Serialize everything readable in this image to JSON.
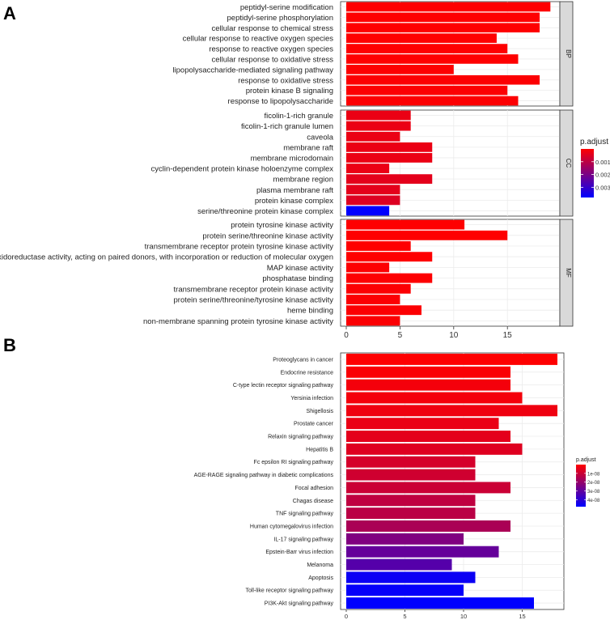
{
  "chart_data": [
    {
      "panel_label": "A",
      "type": "bar",
      "orientation": "horizontal",
      "facets": [
        {
          "name": "BP",
          "categories": [
            "peptidyl-serine modification",
            "peptidyl-serine phosphorylation",
            "cellular response to chemical stress",
            "cellular response to reactive oxygen species",
            "response to reactive oxygen species",
            "cellular response to oxidative stress",
            "lipopolysaccharide-mediated signaling pathway",
            "response to oxidative stress",
            "protein kinase B signaling",
            "response to lipopolysaccharide"
          ],
          "values": [
            19,
            18,
            18,
            14,
            15,
            16,
            10,
            18,
            15,
            16
          ],
          "p_adjust": [
            1e-05,
            1e-05,
            2e-05,
            2e-05,
            2e-05,
            2e-05,
            3e-05,
            4e-05,
            4e-05,
            5e-05
          ]
        },
        {
          "name": "CC",
          "categories": [
            "ficolin-1-rich granule",
            "ficolin-1-rich granule lumen",
            "caveola",
            "membrane raft",
            "membrane microdomain",
            "cyclin-dependent protein kinase holoenzyme complex",
            "membrane region",
            "plasma membrane raft",
            "protein kinase complex",
            "serine/threonine protein kinase complex"
          ],
          "values": [
            6,
            6,
            5,
            8,
            8,
            4,
            8,
            5,
            5,
            4
          ],
          "p_adjust": [
            0.0003,
            0.0003,
            0.0003,
            0.0003,
            0.0003,
            0.0003,
            0.0004,
            0.0004,
            0.0005,
            0.0038
          ]
        },
        {
          "name": "MF",
          "categories": [
            "protein tyrosine kinase activity",
            "protein serine/threonine kinase activity",
            "transmembrane receptor protein tyrosine kinase activity",
            "oxidoreductase activity, acting on paired donors, with incorporation or reduction of molecular oxygen",
            "MAP kinase activity",
            "phosphatase binding",
            "transmembrane receptor protein kinase activity",
            "protein serine/threonine/tyrosine kinase activity",
            "heme binding",
            "non-membrane spanning protein tyrosine kinase activity"
          ],
          "values": [
            11,
            15,
            6,
            8,
            4,
            8,
            6,
            5,
            7,
            5
          ],
          "p_adjust": [
            1e-05,
            1e-05,
            2e-05,
            2e-05,
            3e-05,
            3e-05,
            4e-05,
            5e-05,
            5e-05,
            6e-05
          ]
        }
      ],
      "x_ticks": [
        0,
        5,
        10,
        15
      ],
      "xlim": [
        0,
        20
      ],
      "grid": true,
      "legend": {
        "title": "p.adjust",
        "ticks": [
          0.001,
          0.002,
          0.003
        ],
        "tick_labels": [
          "0.001",
          "0.002",
          "0.003"
        ],
        "range": [
          0,
          0.0038
        ],
        "low_color": "#ff0000",
        "high_color": "#0000ff",
        "placement": "right"
      }
    },
    {
      "panel_label": "B",
      "type": "bar",
      "orientation": "horizontal",
      "categories": [
        "Proteoglycans in cancer",
        "Endocrine resistance",
        "C-type lectin receptor signaling pathway",
        "Yersinia infection",
        "Shigellosis",
        "Prostate cancer",
        "Relaxin signaling pathway",
        "Hepatitis B",
        "Fc epsilon RI signaling pathway",
        "AGE-RAGE signaling pathway in diabetic complications",
        "Focal adhesion",
        "Chagas disease",
        "TNF signaling pathway",
        "Human cytomegalovirus infection",
        "IL-17 signaling pathway",
        "Epstein-Barr virus infection",
        "Melanoma",
        "Apoptosis",
        "Toll-like receptor signaling pathway",
        "PI3K-Akt signaling pathway"
      ],
      "values": [
        18,
        14,
        14,
        15,
        18,
        13,
        14,
        15,
        11,
        11,
        14,
        11,
        11,
        14,
        10,
        13,
        9,
        11,
        10,
        16
      ],
      "p_adjust": [
        1e-10,
        1e-09,
        2e-09,
        2e-09,
        3e-09,
        4e-09,
        5e-09,
        6e-09,
        8e-09,
        9e-09,
        1e-08,
        1.2e-08,
        1.3e-08,
        1.6e-08,
        2.4e-08,
        2.9e-08,
        3.2e-08,
        4.6e-08,
        4.7e-08,
        4.8e-08
      ],
      "x_ticks": [
        0,
        5,
        10,
        15
      ],
      "xlim": [
        0,
        18.6
      ],
      "grid": true,
      "legend": {
        "title": "p.adjust",
        "ticks": [
          1e-08,
          2e-08,
          3e-08,
          4e-08
        ],
        "tick_labels": [
          "1e-08",
          "2e-08",
          "3e-08",
          "4e-08"
        ],
        "range": [
          0,
          4.8e-08
        ],
        "low_color": "#ff0000",
        "high_color": "#0000ff",
        "placement": "right"
      }
    }
  ]
}
